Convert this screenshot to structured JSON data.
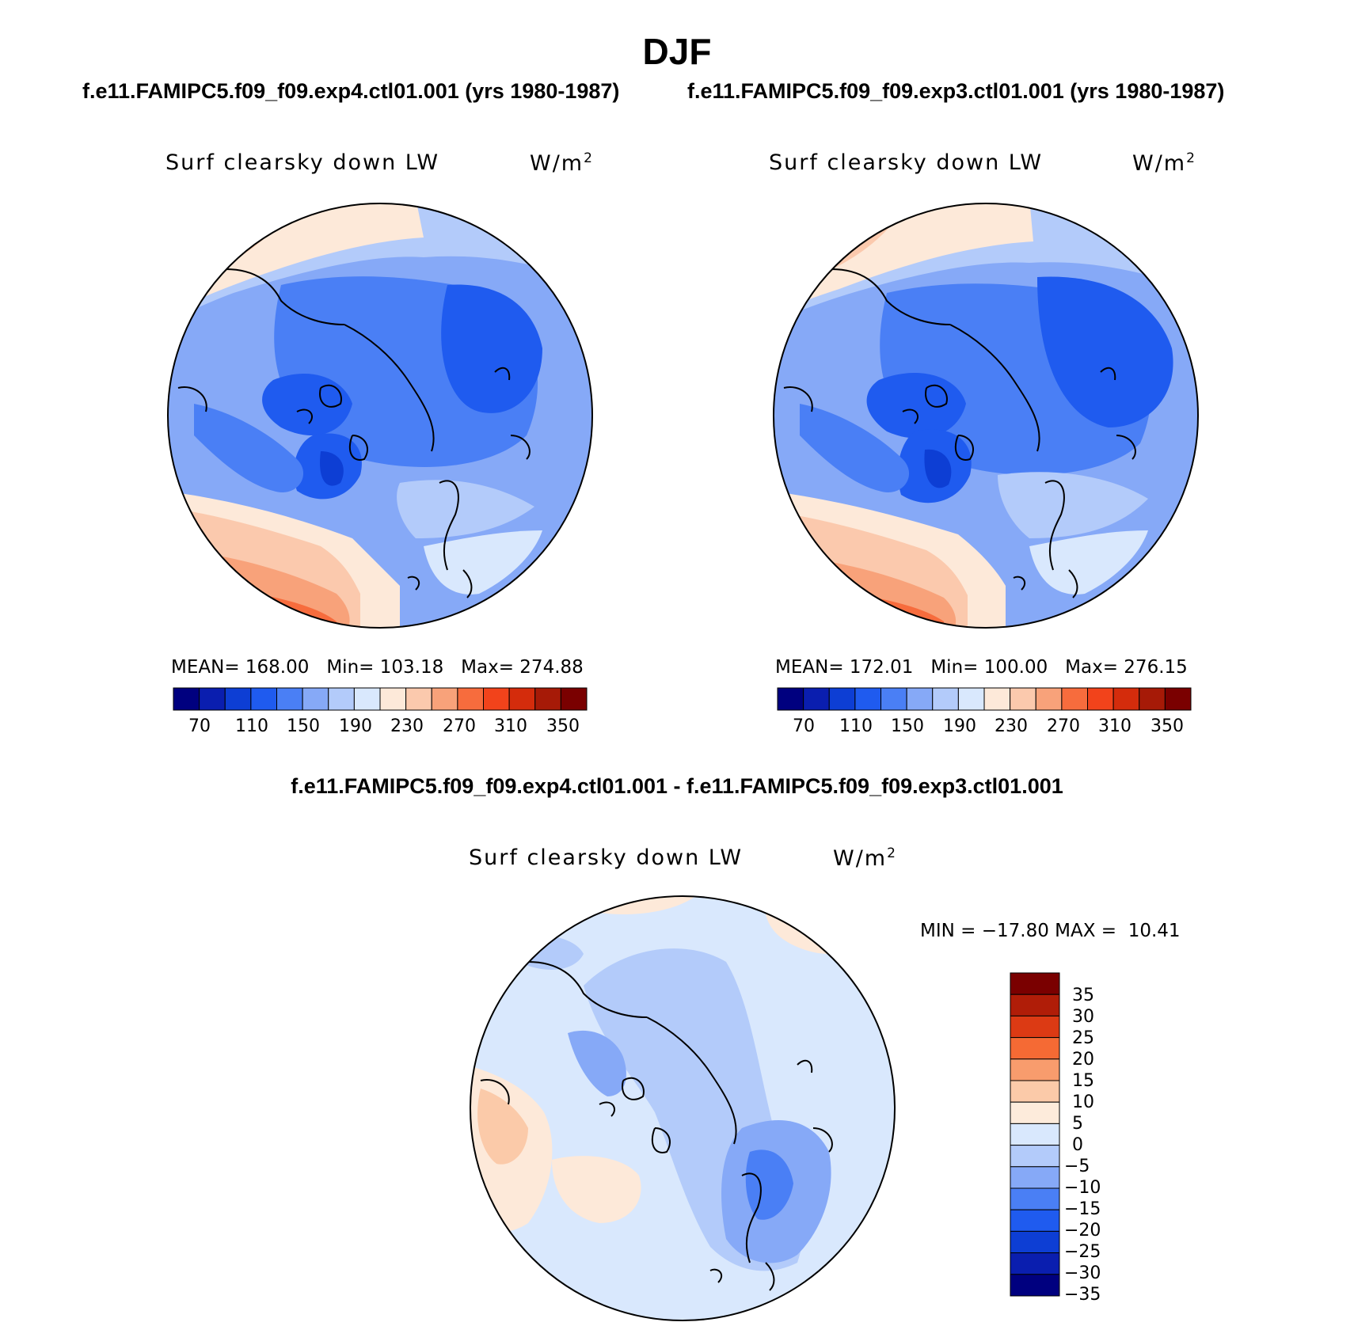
{
  "title": "DJF",
  "panels": [
    {
      "case": "f.e11.FAMIPC5.f09_f09.exp4.ctl01.001 (yrs 1980-1987)",
      "variable": "Surf clearsky down LW",
      "units_base": "W/m",
      "units_exp": "2",
      "stats": {
        "mean_label": "MEAN=",
        "mean": "168.00",
        "min_label": "Min=",
        "min": "103.18",
        "max_label": "Max=",
        "max": "274.88"
      }
    },
    {
      "case": "f.e11.FAMIPC5.f09_f09.exp3.ctl01.001 (yrs 1980-1987)",
      "variable": "Surf clearsky down LW",
      "units_base": "W/m",
      "units_exp": "2",
      "stats": {
        "mean_label": "MEAN=",
        "mean": "172.01",
        "min_label": "Min=",
        "min": "100.00",
        "max_label": "Max=",
        "max": "276.15"
      }
    }
  ],
  "abs_colorbar": {
    "colors": [
      "#00007f",
      "#0a1eaf",
      "#0d3ed4",
      "#1f5bef",
      "#4a7ff5",
      "#86a9f7",
      "#b3cbfa",
      "#d9e8fd",
      "#fde9d9",
      "#fbc9ad",
      "#f8a27a",
      "#f76c3d",
      "#f2431b",
      "#d42c0c",
      "#a61a07",
      "#7a0000"
    ],
    "labels": [
      "70",
      "110",
      "150",
      "190",
      "230",
      "270",
      "310",
      "350"
    ]
  },
  "difference": {
    "title": "f.e11.FAMIPC5.f09_f09.exp4.ctl01.001 - f.e11.FAMIPC5.f09_f09.exp3.ctl01.001",
    "variable": "Surf clearsky down LW",
    "units_base": "W/m",
    "units_exp": "2",
    "minmax": "MIN = −17.80 MAX =  10.41",
    "colorbar": {
      "colors_top_to_bottom": [
        "#7a0000",
        "#b01d08",
        "#dc3a14",
        "#f56a34",
        "#f89c6d",
        "#fbcaa9",
        "#fdebdb",
        "#d9e8fd",
        "#b3cbfa",
        "#86a9f7",
        "#4a7ff5",
        "#1f5bef",
        "#0d3ed4",
        "#0a1eaf",
        "#00007f"
      ],
      "labels_top_to_bottom": [
        "35",
        "30",
        "25",
        "20",
        "15",
        "10",
        "5",
        "0",
        "−5",
        "−10",
        "−15",
        "−20",
        "−25",
        "−30",
        "−35"
      ]
    }
  }
}
